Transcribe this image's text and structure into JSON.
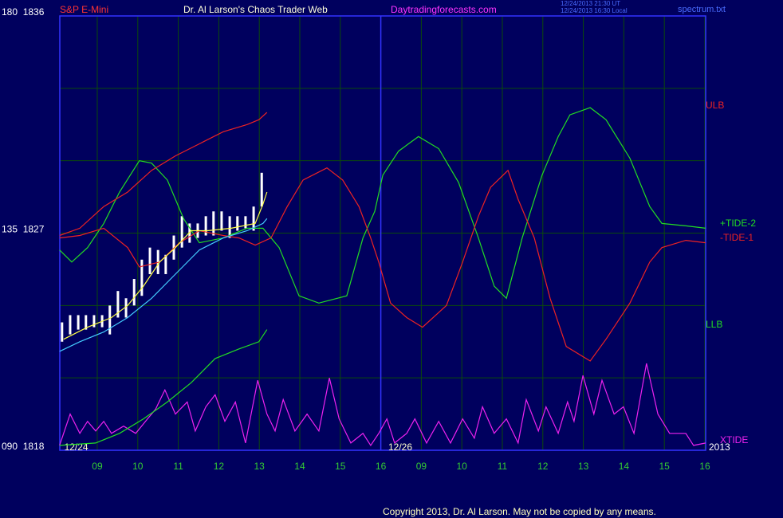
{
  "chart_data": {
    "type": "line",
    "title": "Dr. Al Larson's Chaos Trader Web",
    "instrument": "S&P E-Mini",
    "website": "Daytradingforecasts.com",
    "timestamps": [
      "12/24/2013 21:30 UT",
      "12/24/2013 16:30 Local"
    ],
    "source_file": "spectrum.txt",
    "copyright": "Copyright 2013, Dr. Al Larson. May not be copied by any means.",
    "date_labels": [
      {
        "x": 0.5,
        "label": "12/24"
      },
      {
        "x": 8.5,
        "label": "12/26"
      },
      {
        "x": 16.02,
        "label": "2013"
      }
    ],
    "xlim": [
      0.075,
      16.02
    ],
    "xticks": [
      {
        "value": 1,
        "label": "09"
      },
      {
        "value": 2,
        "label": "10"
      },
      {
        "value": 3,
        "label": "11"
      },
      {
        "value": 4,
        "label": "12"
      },
      {
        "value": 5,
        "label": "13"
      },
      {
        "value": 6,
        "label": "14"
      },
      {
        "value": 7,
        "label": "15"
      },
      {
        "value": 8,
        "label": "16"
      },
      {
        "value": 9,
        "label": "09"
      },
      {
        "value": 10,
        "label": "10"
      },
      {
        "value": 11,
        "label": "11"
      },
      {
        "value": 12,
        "label": "12"
      },
      {
        "value": 13,
        "label": "13"
      },
      {
        "value": 14,
        "label": "14"
      },
      {
        "value": 15,
        "label": "15"
      },
      {
        "value": 16,
        "label": "16"
      }
    ],
    "x_separator": 8,
    "ylim": [
      1818,
      1836
    ],
    "yticks": [
      {
        "value": 1836,
        "label": "180  1836"
      },
      {
        "value": 1827,
        "label": "135  1827"
      },
      {
        "value": 1818,
        "label": "090  1818"
      }
    ],
    "ygrid": [
      1821,
      1824,
      1830,
      1833
    ],
    "grid": true,
    "price_bars": {
      "color": "#ffffff",
      "x": [
        0.13,
        0.33,
        0.53,
        0.72,
        0.92,
        1.12,
        1.31,
        1.51,
        1.71,
        1.91,
        2.1,
        2.3,
        2.5,
        2.69,
        2.89,
        3.09,
        3.28,
        3.48,
        3.68,
        3.87,
        4.07,
        4.27,
        4.46,
        4.66,
        4.86,
        5.06
      ],
      "high": [
        1823.3,
        1823.6,
        1823.6,
        1823.6,
        1823.6,
        1823.6,
        1824.0,
        1824.6,
        1824.3,
        1825.1,
        1825.9,
        1826.4,
        1826.3,
        1826.1,
        1826.9,
        1827.7,
        1827.4,
        1827.4,
        1827.7,
        1827.9,
        1827.9,
        1827.7,
        1827.7,
        1827.7,
        1828.1,
        1829.5
      ],
      "low": [
        1822.5,
        1822.8,
        1823.0,
        1823.0,
        1823.1,
        1823.1,
        1822.8,
        1823.5,
        1823.5,
        1824.0,
        1824.4,
        1825.3,
        1825.3,
        1825.3,
        1825.9,
        1826.4,
        1826.6,
        1826.8,
        1826.9,
        1826.9,
        1827.1,
        1826.8,
        1827.1,
        1827.2,
        1827.1,
        1828.1
      ]
    },
    "series": [
      {
        "name": "+TIDE-2",
        "color": "#22dd22",
        "x": [
          0.07,
          0.37,
          0.76,
          1.16,
          1.55,
          2.04,
          2.34,
          2.73,
          3.13,
          3.52,
          4.11,
          4.7,
          5.09,
          5.49,
          5.98,
          6.47,
          7.16,
          7.56,
          7.85,
          8.05,
          8.44,
          8.93,
          9.43,
          9.92,
          10.41,
          10.8,
          11.1,
          11.49,
          11.98,
          12.38,
          12.67,
          13.17,
          13.56,
          14.15,
          14.64,
          14.94,
          15.53,
          16.02
        ],
        "values": [
          1826.3,
          1825.8,
          1826.4,
          1827.4,
          1828.7,
          1830.0,
          1829.9,
          1829.2,
          1827.6,
          1826.6,
          1826.8,
          1827.2,
          1827.2,
          1826.4,
          1824.4,
          1824.1,
          1824.4,
          1826.8,
          1827.9,
          1829.4,
          1830.4,
          1831.0,
          1830.5,
          1829.1,
          1826.8,
          1824.8,
          1824.3,
          1826.8,
          1829.4,
          1831.0,
          1831.9,
          1832.2,
          1831.7,
          1830.1,
          1828.1,
          1827.4,
          1827.3,
          1827.2
        ]
      },
      {
        "name": "-TIDE-1",
        "color": "#ee2222",
        "x": [
          0.07,
          0.57,
          1.16,
          1.75,
          2.04,
          2.54,
          3.03,
          3.52,
          4.11,
          4.5,
          4.9,
          5.29,
          5.69,
          6.08,
          6.67,
          7.06,
          7.46,
          7.75,
          7.95,
          8.24,
          8.64,
          9.03,
          9.62,
          10.02,
          10.41,
          10.71,
          11.14,
          11.39,
          11.79,
          12.18,
          12.58,
          13.17,
          13.56,
          14.15,
          14.64,
          14.94,
          15.53,
          16.02
        ],
        "values": [
          1826.8,
          1826.9,
          1827.2,
          1826.4,
          1825.6,
          1825.8,
          1826.6,
          1827.1,
          1826.9,
          1826.8,
          1826.5,
          1826.8,
          1828.1,
          1829.2,
          1829.7,
          1829.2,
          1828.1,
          1826.8,
          1825.8,
          1824.1,
          1823.5,
          1823.1,
          1824.0,
          1825.8,
          1827.7,
          1828.9,
          1829.6,
          1828.4,
          1826.8,
          1824.3,
          1822.3,
          1821.7,
          1822.6,
          1824.1,
          1825.8,
          1826.4,
          1826.7,
          1826.6
        ]
      },
      {
        "name": "XTIDE",
        "color": "#ee22ee",
        "x": [
          0.07,
          0.33,
          0.57,
          0.76,
          0.96,
          1.16,
          1.35,
          1.65,
          1.95,
          2.24,
          2.44,
          2.67,
          2.93,
          3.22,
          3.42,
          3.68,
          3.91,
          4.15,
          4.41,
          4.66,
          4.96,
          5.19,
          5.39,
          5.59,
          5.88,
          6.18,
          6.47,
          6.73,
          6.97,
          7.26,
          7.56,
          7.75,
          7.95,
          8.15,
          8.34,
          8.64,
          8.84,
          9.13,
          9.43,
          9.72,
          10.02,
          10.31,
          10.51,
          10.8,
          11.1,
          11.39,
          11.59,
          11.89,
          12.08,
          12.38,
          12.61,
          12.77,
          12.99,
          13.26,
          13.46,
          13.76,
          13.99,
          14.25,
          14.56,
          14.84,
          15.13,
          15.53,
          15.72,
          16.02
        ],
        "values": [
          1818.2,
          1819.5,
          1818.7,
          1819.2,
          1818.8,
          1819.2,
          1818.7,
          1819.0,
          1818.7,
          1819.3,
          1819.7,
          1820.5,
          1819.5,
          1820.0,
          1818.8,
          1819.8,
          1820.3,
          1819.2,
          1820.0,
          1818.3,
          1820.9,
          1819.5,
          1818.8,
          1820.1,
          1818.8,
          1819.5,
          1818.8,
          1821.0,
          1819.3,
          1818.3,
          1818.7,
          1818.2,
          1818.7,
          1819.3,
          1818.3,
          1818.7,
          1819.3,
          1818.3,
          1819.2,
          1818.3,
          1819.3,
          1818.5,
          1819.8,
          1818.7,
          1819.3,
          1818.3,
          1820.1,
          1818.8,
          1819.8,
          1818.7,
          1820.0,
          1819.2,
          1821.1,
          1819.5,
          1820.9,
          1819.5,
          1819.8,
          1818.7,
          1821.6,
          1819.5,
          1818.7,
          1818.7,
          1818.2,
          1818.3
        ]
      },
      {
        "name": "ULB",
        "color": "#ee2222",
        "x": [
          0.07,
          0.57,
          1.16,
          1.75,
          2.34,
          2.93,
          3.52,
          4.11,
          4.7,
          4.99,
          5.19
        ],
        "values": [
          1826.9,
          1827.2,
          1828.1,
          1828.7,
          1829.6,
          1830.2,
          1830.7,
          1831.2,
          1831.5,
          1831.7,
          1832.0
        ]
      },
      {
        "name": "LLB",
        "color": "#22dd22",
        "x": [
          0.07,
          0.96,
          1.55,
          2.14,
          2.73,
          3.32,
          3.91,
          4.5,
          4.99,
          5.19
        ],
        "values": [
          1818.2,
          1818.3,
          1818.7,
          1819.3,
          1820.0,
          1820.8,
          1821.8,
          1822.2,
          1822.5,
          1823.0
        ]
      },
      {
        "color": "#44ccff",
        "x": [
          0.07,
          0.57,
          1.16,
          1.75,
          2.34,
          2.93,
          3.52,
          4.11,
          4.7,
          5.09,
          5.19
        ],
        "values": [
          1822.1,
          1822.5,
          1822.9,
          1823.5,
          1824.3,
          1825.3,
          1826.3,
          1826.8,
          1827.1,
          1827.4,
          1827.6
        ]
      },
      {
        "color": "#ffff44",
        "x": [
          0.17,
          0.76,
          1.35,
          1.75,
          2.14,
          2.54,
          2.93,
          3.32,
          3.72,
          4.31,
          4.9,
          5.09,
          5.19
        ],
        "values": [
          1822.6,
          1823.1,
          1823.5,
          1824.0,
          1824.8,
          1825.8,
          1826.4,
          1827.1,
          1827.1,
          1827.2,
          1827.4,
          1828.2,
          1828.7
        ]
      }
    ]
  }
}
